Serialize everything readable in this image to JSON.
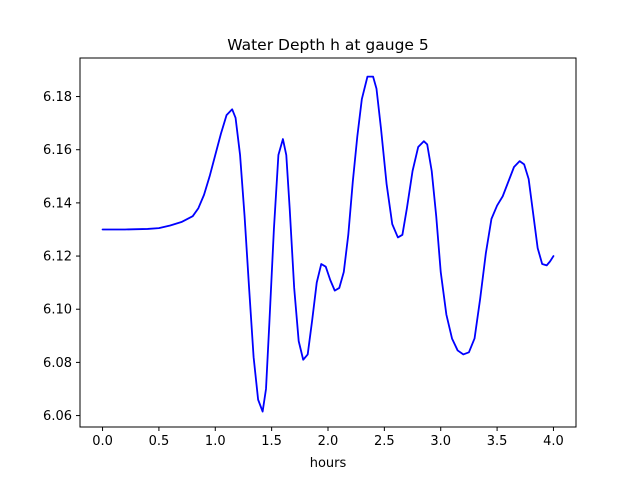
{
  "chart_data": {
    "type": "line",
    "title": "Water Depth h at gauge 5",
    "xlabel": "hours",
    "ylabel": "",
    "xlim": [
      -0.2,
      4.2
    ],
    "ylim": [
      6.0557,
      6.1945
    ],
    "xticks": [
      0.0,
      0.5,
      1.0,
      1.5,
      2.0,
      2.5,
      3.0,
      3.5,
      4.0
    ],
    "xtick_labels": [
      "0.0",
      "0.5",
      "1.0",
      "1.5",
      "2.0",
      "2.5",
      "3.0",
      "3.5",
      "4.0"
    ],
    "yticks": [
      6.06,
      6.08,
      6.1,
      6.12,
      6.14,
      6.16,
      6.18
    ],
    "ytick_labels": [
      "6.06",
      "6.08",
      "6.10",
      "6.12",
      "6.14",
      "6.16",
      "6.18"
    ],
    "grid": false,
    "legend": "none",
    "series": [
      {
        "color": "#0000ff",
        "x": [
          0.0,
          0.2,
          0.4,
          0.5,
          0.6,
          0.7,
          0.8,
          0.85,
          0.9,
          0.95,
          1.0,
          1.05,
          1.1,
          1.15,
          1.18,
          1.22,
          1.26,
          1.3,
          1.34,
          1.38,
          1.42,
          1.45,
          1.48,
          1.52,
          1.56,
          1.6,
          1.63,
          1.66,
          1.7,
          1.74,
          1.78,
          1.82,
          1.86,
          1.9,
          1.94,
          1.98,
          2.02,
          2.06,
          2.1,
          2.14,
          2.18,
          2.22,
          2.26,
          2.3,
          2.35,
          2.4,
          2.43,
          2.47,
          2.52,
          2.57,
          2.62,
          2.66,
          2.7,
          2.75,
          2.8,
          2.85,
          2.88,
          2.92,
          2.96,
          3.0,
          3.05,
          3.1,
          3.15,
          3.2,
          3.25,
          3.3,
          3.35,
          3.4,
          3.45,
          3.5,
          3.55,
          3.6,
          3.65,
          3.7,
          3.74,
          3.78,
          3.82,
          3.86,
          3.9,
          3.94,
          3.97,
          4.0
        ],
        "y": [
          6.13,
          6.13,
          6.1302,
          6.1305,
          6.1315,
          6.1328,
          6.135,
          6.138,
          6.143,
          6.15,
          6.158,
          6.166,
          6.173,
          6.1752,
          6.172,
          6.158,
          6.135,
          6.108,
          6.082,
          6.066,
          6.0615,
          6.07,
          6.095,
          6.13,
          6.158,
          6.164,
          6.158,
          6.138,
          6.108,
          6.088,
          6.081,
          6.083,
          6.096,
          6.11,
          6.117,
          6.116,
          6.111,
          6.107,
          6.108,
          6.114,
          6.128,
          6.148,
          6.165,
          6.179,
          6.1875,
          6.1875,
          6.183,
          6.168,
          6.147,
          6.132,
          6.127,
          6.128,
          6.138,
          6.152,
          6.161,
          6.1632,
          6.162,
          6.152,
          6.135,
          6.114,
          6.098,
          6.089,
          6.0845,
          6.083,
          6.0838,
          6.089,
          6.104,
          6.121,
          6.134,
          6.139,
          6.1425,
          6.148,
          6.1535,
          6.1557,
          6.1545,
          6.149,
          6.136,
          6.123,
          6.117,
          6.1165,
          6.118,
          6.12
        ]
      }
    ]
  }
}
